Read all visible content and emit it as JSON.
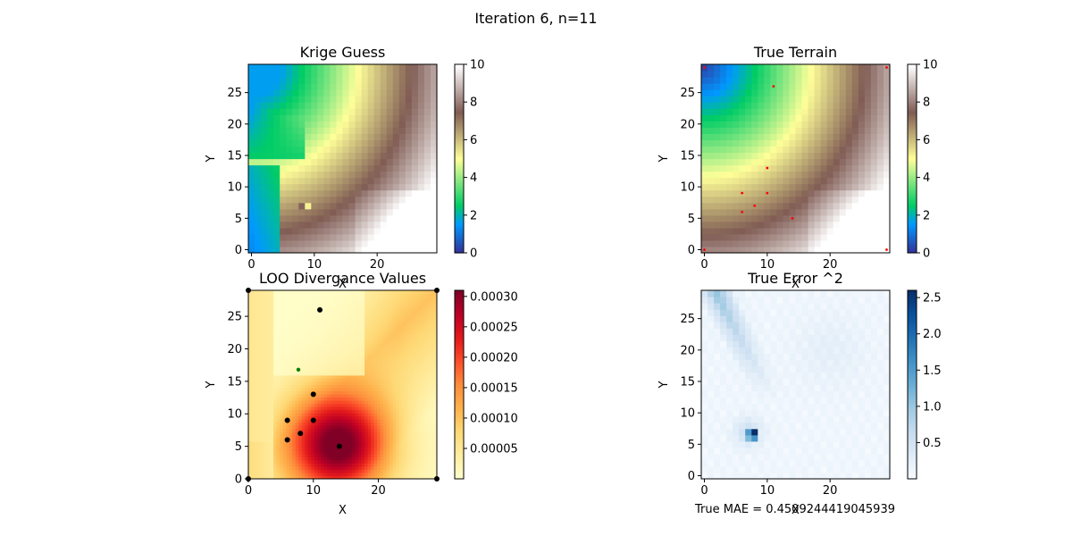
{
  "figure": {
    "suptitle": "Iteration 6, n=11",
    "note": "True MAE = 0.4509244419045939"
  },
  "chart_data": [
    {
      "id": "krige",
      "type": "heatmap",
      "title": "Krige Guess",
      "xlabel": "X",
      "ylabel": "Y",
      "grid_size": 30,
      "xticks": [
        0,
        10,
        20
      ],
      "yticks": [
        0,
        5,
        10,
        15,
        20,
        25
      ],
      "colormap": "terrain",
      "colorbar": {
        "range": [
          0,
          10
        ],
        "ticks": [
          0,
          2,
          4,
          6,
          8,
          10
        ]
      }
    },
    {
      "id": "true",
      "type": "heatmap",
      "title": "True Terrain",
      "xlabel": "X",
      "ylabel": "Y",
      "grid_size": 30,
      "xticks": [
        0,
        10,
        20
      ],
      "yticks": [
        0,
        5,
        10,
        15,
        20,
        25
      ],
      "colormap": "terrain",
      "colorbar": {
        "range": [
          0,
          10
        ],
        "ticks": [
          0,
          2,
          4,
          6,
          8,
          10
        ]
      },
      "sample_points": [
        [
          0,
          0
        ],
        [
          0,
          29
        ],
        [
          29,
          0
        ],
        [
          29,
          29
        ],
        [
          6,
          6
        ],
        [
          6,
          9
        ],
        [
          8,
          7
        ],
        [
          10,
          9
        ],
        [
          10,
          13
        ],
        [
          14,
          5
        ],
        [
          11,
          26
        ]
      ],
      "point_color": "#ff0000"
    },
    {
      "id": "loo",
      "type": "heatmap",
      "title": "LOO Divergance Values",
      "xlabel": "X",
      "ylabel": "Y",
      "range": [
        0,
        29
      ],
      "xticks": [
        0,
        10,
        20
      ],
      "yticks": [
        0,
        5,
        10,
        15,
        20,
        25
      ],
      "colormap": "YlOrRd",
      "colorbar": {
        "range": [
          0,
          0.00031
        ],
        "ticks": [
          "0.00005",
          "0.00010",
          "0.00015",
          "0.00020",
          "0.00025",
          "0.00030"
        ],
        "tick_values": [
          5e-05,
          0.0001,
          0.00015,
          0.0002,
          0.00025,
          0.0003
        ]
      },
      "sample_points": [
        [
          0,
          0
        ],
        [
          0,
          29
        ],
        [
          29,
          0
        ],
        [
          29,
          29
        ],
        [
          6,
          6
        ],
        [
          6,
          9
        ],
        [
          8,
          7
        ],
        [
          10,
          9
        ],
        [
          10,
          13
        ],
        [
          14,
          5
        ],
        [
          11,
          26
        ]
      ],
      "point_color": "#000000",
      "next_point": [
        7.7,
        16.8
      ],
      "next_point_color": "#008000"
    },
    {
      "id": "err",
      "type": "heatmap",
      "title": "True Error ^2",
      "xlabel": "X",
      "ylabel": "Y",
      "grid_size": 30,
      "xticks": [
        0,
        10,
        20
      ],
      "yticks": [
        0,
        5,
        10,
        15,
        20,
        25
      ],
      "colormap": "Blues",
      "colorbar": {
        "range": [
          0,
          2.6
        ],
        "ticks": [
          "0.5",
          "1.0",
          "1.5",
          "2.0",
          "2.5"
        ],
        "tick_values": [
          0.5,
          1.0,
          1.5,
          2.0,
          2.5
        ]
      }
    }
  ]
}
